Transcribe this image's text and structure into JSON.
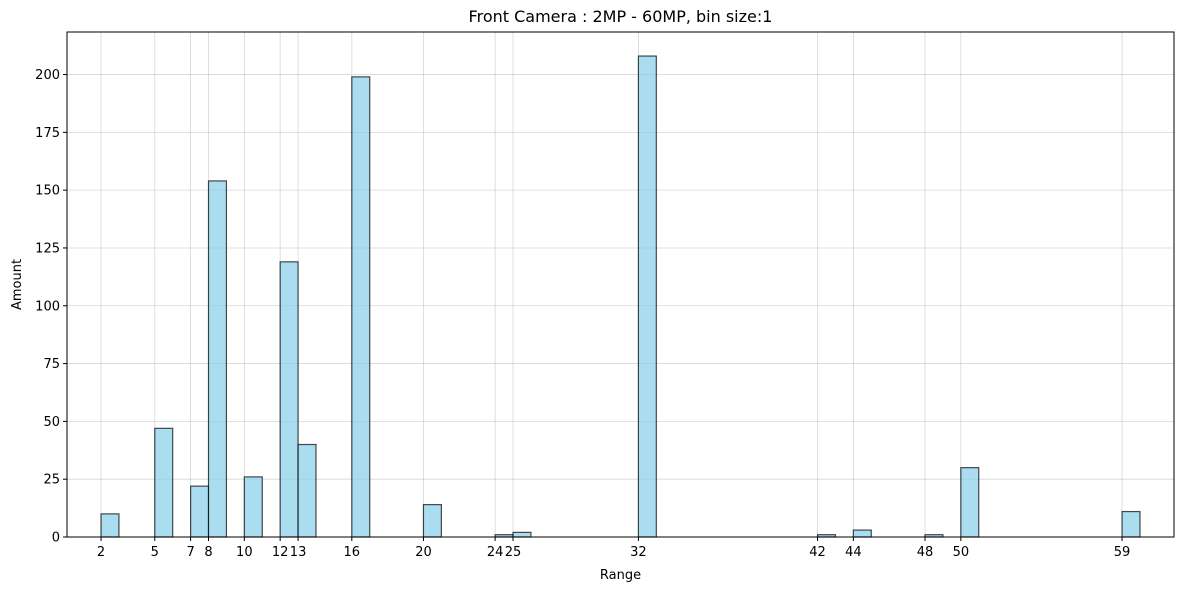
{
  "chart_data": {
    "type": "bar",
    "title": "Front Camera : 2MP - 60MP, bin size:1",
    "xlabel": "Range",
    "ylabel": "Amount",
    "xlim": [
      0.1,
      61.9
    ],
    "ylim": [
      0,
      218.4
    ],
    "x_ticks": [
      2,
      5,
      7,
      8,
      10,
      12,
      13,
      16,
      20,
      24,
      25,
      32,
      42,
      44,
      48,
      50,
      59
    ],
    "y_ticks": [
      0,
      25,
      50,
      75,
      100,
      125,
      150,
      175,
      200
    ],
    "bin_width": 1,
    "grid": true,
    "bar_color": "#87ceeb",
    "edge_color": "#000000",
    "bars": [
      {
        "start": 2,
        "value": 10
      },
      {
        "start": 5,
        "value": 47
      },
      {
        "start": 7,
        "value": 22
      },
      {
        "start": 8,
        "value": 154
      },
      {
        "start": 10,
        "value": 26
      },
      {
        "start": 12,
        "value": 119
      },
      {
        "start": 13,
        "value": 40
      },
      {
        "start": 16,
        "value": 199
      },
      {
        "start": 20,
        "value": 14
      },
      {
        "start": 24,
        "value": 1
      },
      {
        "start": 25,
        "value": 2
      },
      {
        "start": 32,
        "value": 208
      },
      {
        "start": 42,
        "value": 1
      },
      {
        "start": 44,
        "value": 3
      },
      {
        "start": 48,
        "value": 1
      },
      {
        "start": 50,
        "value": 30
      },
      {
        "start": 59,
        "value": 11
      }
    ]
  }
}
